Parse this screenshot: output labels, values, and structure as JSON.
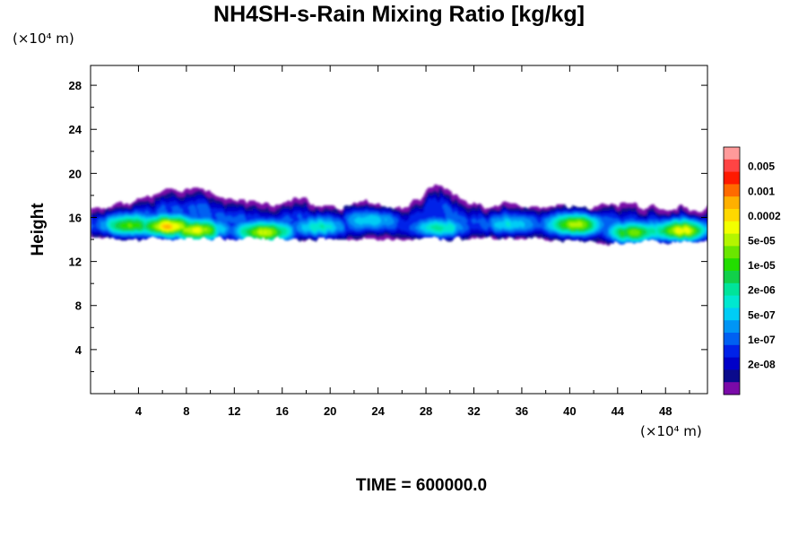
{
  "chart_data": {
    "type": "heatmap",
    "title": "NH4SH-s-Rain Mixing Ratio [kg/kg]",
    "xlabel": "",
    "ylabel": "Height",
    "x_unit": "(×10⁴ m)",
    "y_unit": "(×10⁴ m)",
    "xlim": [
      0,
      51.5
    ],
    "ylim": [
      0,
      29.8
    ],
    "x_ticks": [
      4,
      8,
      12,
      16,
      20,
      24,
      28,
      32,
      36,
      40,
      44,
      48
    ],
    "y_ticks": [
      4,
      8,
      12,
      16,
      20,
      24,
      28
    ],
    "colorbar": {
      "labels": [
        "0.005",
        "0.001",
        "0.0002",
        "5e-05",
        "1e-05",
        "2e-06",
        "5e-07",
        "1e-07",
        "2e-08"
      ],
      "colors": [
        "#ff9a9a",
        "#ff4444",
        "#ff1a00",
        "#ff6a00",
        "#ffb000",
        "#ffd800",
        "#f2ff00",
        "#b4f500",
        "#6ae600",
        "#22dd00",
        "#11d04a",
        "#00e49a",
        "#00e8d0",
        "#00cdf5",
        "#0095f5",
        "#0060f2",
        "#0022e8",
        "#0000c8",
        "#0a0a8c",
        "#7a0aa8"
      ]
    },
    "cloud_layer": {
      "base_km": 13.5,
      "top_km": 19.5,
      "core_max_value": "1e-03",
      "features": [
        {
          "x": 3.2,
          "y": 15.3,
          "level": 9
        },
        {
          "x": 6.5,
          "y": 15.2,
          "level": 13
        },
        {
          "x": 8.8,
          "y": 14.8,
          "level": 12
        },
        {
          "x": 14.5,
          "y": 14.6,
          "level": 12
        },
        {
          "x": 19.0,
          "y": 15.1,
          "level": 6
        },
        {
          "x": 23.5,
          "y": 15.8,
          "level": 5
        },
        {
          "x": 29.0,
          "y": 15.0,
          "level": 7
        },
        {
          "x": 35.0,
          "y": 15.4,
          "level": 5
        },
        {
          "x": 40.5,
          "y": 15.4,
          "level": 10
        },
        {
          "x": 45.5,
          "y": 14.6,
          "level": 10
        },
        {
          "x": 49.3,
          "y": 14.8,
          "level": 12
        }
      ]
    }
  },
  "footer": {
    "time_label": "TIME = 600000.0"
  }
}
